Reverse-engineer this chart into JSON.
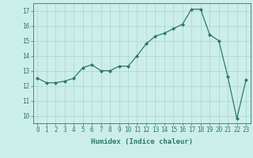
{
  "x": [
    0,
    1,
    2,
    3,
    4,
    5,
    6,
    7,
    8,
    9,
    10,
    11,
    12,
    13,
    14,
    15,
    16,
    17,
    18,
    19,
    20,
    21,
    22,
    23
  ],
  "y": [
    12.5,
    12.2,
    12.2,
    12.3,
    12.5,
    13.2,
    13.4,
    13.0,
    13.0,
    13.3,
    13.3,
    14.0,
    14.8,
    15.3,
    15.5,
    15.8,
    16.1,
    17.1,
    17.1,
    15.4,
    15.0,
    12.6,
    9.8,
    12.4
  ],
  "xlabel": "Humidex (Indice chaleur)",
  "ylabel": "",
  "xlim": [
    -0.5,
    23.5
  ],
  "ylim": [
    9.5,
    17.5
  ],
  "yticks": [
    10,
    11,
    12,
    13,
    14,
    15,
    16,
    17
  ],
  "xticks": [
    0,
    1,
    2,
    3,
    4,
    5,
    6,
    7,
    8,
    9,
    10,
    11,
    12,
    13,
    14,
    15,
    16,
    17,
    18,
    19,
    20,
    21,
    22,
    23
  ],
  "line_color": "#2d7a6a",
  "marker": "D",
  "marker_size": 2.0,
  "bg_color": "#cceee8",
  "grid_color": "#aad4cc",
  "axis_color": "#2d7a6a",
  "xlabel_fontsize": 6.5,
  "tick_fontsize": 5.5
}
